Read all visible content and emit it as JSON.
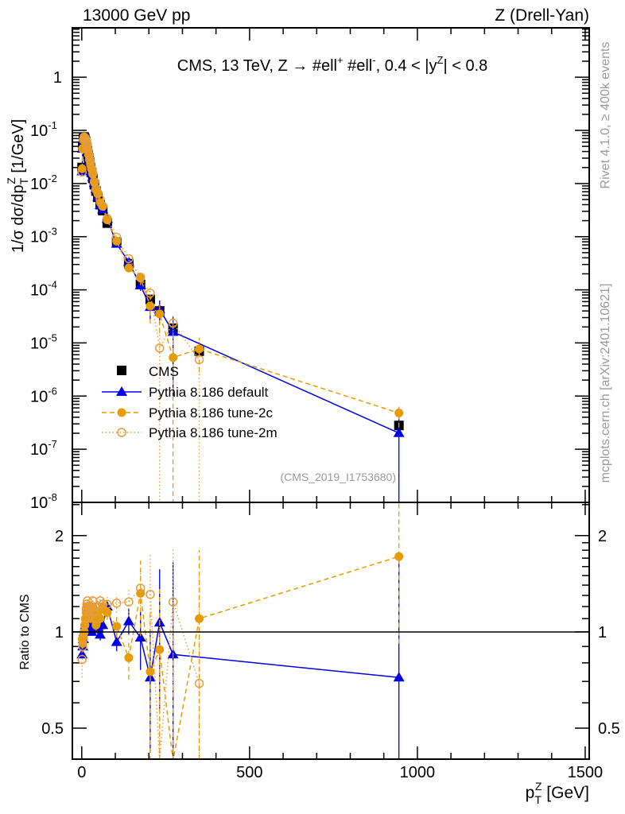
{
  "header": {
    "left": "13000 GeV pp",
    "right": "Z (Drell-Yan)"
  },
  "side_labels": {
    "rivet": "Rivet 4.1.0, ≥ 400k events",
    "mcplots": "mcplots.cern.ch [arXiv:2401.10621]"
  },
  "colors": {
    "cms": "#000000",
    "default": "#0000e6",
    "tune2c": "#e69c00",
    "tune2m": "#e69c3c"
  },
  "chart_data": {
    "type": "scatter",
    "title_parts": [
      {
        "t": "CMS, 13 TeV, Z →  #ell"
      },
      {
        "t": "+",
        "sup": true
      },
      {
        "t": " #ell"
      },
      {
        "t": "-",
        "sup": true
      },
      {
        "t": ", 0.4 < |y"
      },
      {
        "t": "Z",
        "sup": true
      },
      {
        "t": "| < 0.8"
      }
    ],
    "analysis_label": "(CMS_2019_I1753680)",
    "ylabel": {
      "main": "1/σ dσ/dp",
      "sub": "T",
      "sup": "Z",
      "unit": " [1/GeV]"
    },
    "ratio_ylabel": "Ratio to CMS",
    "xlabel": {
      "main": "p",
      "sub": "T",
      "sup": "Z",
      "unit": " [GeV]"
    },
    "xlim": [
      -28,
      1512
    ],
    "ylim": [
      1e-08,
      8.5
    ],
    "yscale": "log",
    "ratio_ylim": [
      0.4,
      2.54
    ],
    "ratio_yscale": "log",
    "x_ticks": [
      "0",
      "500",
      "1000",
      "1500"
    ],
    "x_tick_values": [
      0,
      500,
      1000,
      1500
    ],
    "y_ticks": [
      {
        "base": "1",
        "exp": ""
      },
      {
        "base": "10",
        "exp": "-1"
      },
      {
        "base": "10",
        "exp": "-2"
      },
      {
        "base": "10",
        "exp": "-3"
      },
      {
        "base": "10",
        "exp": "-4"
      },
      {
        "base": "10",
        "exp": "-5"
      },
      {
        "base": "10",
        "exp": "-6"
      },
      {
        "base": "10",
        "exp": "-7"
      },
      {
        "base": "10",
        "exp": "-8"
      }
    ],
    "y_tick_values": [
      1,
      0.1,
      0.01,
      0.001,
      0.0001,
      1e-05,
      1e-06,
      1e-07,
      1e-08
    ],
    "ratio_ticks": [
      "0.5",
      "1",
      "2"
    ],
    "ratio_tick_values": [
      0.5,
      1,
      2
    ],
    "legend": [
      "CMS",
      "Pythia 8.186 default",
      "Pythia 8.186 tune-2c",
      "Pythia 8.186 tune-2m"
    ],
    "legend_position": "middle-left",
    "x": [
      1,
      3,
      5,
      7,
      9,
      11,
      13,
      15,
      17,
      19,
      21,
      23.5,
      26.5,
      29.5,
      33,
      37.5,
      42.5,
      48,
      55,
      62.5,
      76,
      104,
      140,
      175,
      204,
      232,
      272,
      350,
      945
    ],
    "cms": [
      0.02,
      0.05,
      0.07,
      0.075,
      0.07,
      0.063,
      0.055,
      0.048,
      0.041,
      0.035,
      0.03,
      0.025,
      0.02,
      0.016,
      0.0125,
      0.0095,
      0.0072,
      0.0055,
      0.004,
      0.0031,
      0.0018,
      0.00079,
      0.00031,
      0.000126,
      6.6e-05,
      4e-05,
      1.9e-05,
      7e-06,
      2.8e-07
    ],
    "series": [
      {
        "name": "Pythia 8.186 default",
        "key": "default",
        "ratio": [
          0.85,
          0.9,
          0.95,
          1.0,
          1.02,
          1.05,
          1.05,
          1.08,
          1.1,
          1.08,
          1.05,
          1.05,
          1.02,
          1.0,
          1.05,
          1.08,
          1.1,
          1.02,
          0.98,
          1.05,
          1.2,
          0.93,
          1.08,
          0.96,
          0.72,
          1.07,
          0.85,
          null,
          0.72
        ],
        "ratio_err": [
          0.03,
          0.02,
          0.02,
          0.02,
          0.02,
          0.02,
          0.02,
          0.02,
          0.02,
          0.02,
          0.02,
          0.02,
          0.02,
          0.02,
          0.03,
          0.03,
          0.03,
          0.04,
          0.04,
          0.05,
          0.05,
          0.06,
          0.1,
          0.2,
          0.3,
          0.5,
          0.8,
          null,
          1.0
        ]
      },
      {
        "name": "Pythia 8.186 tune-2c",
        "key": "tune2c",
        "ratio": [
          0.95,
          0.92,
          0.97,
          1.0,
          1.05,
          1.1,
          1.15,
          1.2,
          1.2,
          1.18,
          1.15,
          1.12,
          1.1,
          1.15,
          1.2,
          1.1,
          1.05,
          1.15,
          1.1,
          1.2,
          1.15,
          1.04,
          0.83,
          1.32,
          0.75,
          0.88,
          0.28,
          1.1,
          1.72
        ],
        "ratio_err": [
          0.03,
          0.02,
          0.02,
          0.02,
          0.02,
          0.02,
          0.02,
          0.02,
          0.02,
          0.02,
          0.03,
          0.03,
          0.03,
          0.03,
          0.03,
          0.04,
          0.04,
          0.05,
          0.05,
          0.06,
          0.06,
          0.08,
          0.12,
          0.35,
          0.4,
          0.5,
          0.9,
          0.7,
          0.8
        ]
      },
      {
        "name": "Pythia 8.186 tune-2m",
        "key": "tune2m",
        "ratio": [
          0.82,
          0.9,
          0.95,
          1.0,
          1.05,
          1.1,
          1.18,
          1.22,
          1.25,
          1.2,
          1.15,
          1.12,
          1.18,
          1.2,
          1.25,
          1.15,
          1.1,
          1.2,
          1.25,
          1.22,
          1.22,
          1.23,
          1.24,
          1.37,
          1.31,
          0.2,
          1.24,
          0.69,
          null
        ],
        "ratio_err": [
          0.1,
          0.03,
          0.03,
          0.03,
          0.03,
          0.03,
          0.03,
          0.03,
          0.03,
          0.03,
          0.03,
          0.03,
          0.04,
          0.04,
          0.04,
          0.05,
          0.05,
          0.05,
          0.06,
          0.06,
          0.07,
          0.08,
          0.12,
          0.2,
          0.45,
          0.9,
          0.6,
          0.8,
          null
        ]
      }
    ]
  }
}
